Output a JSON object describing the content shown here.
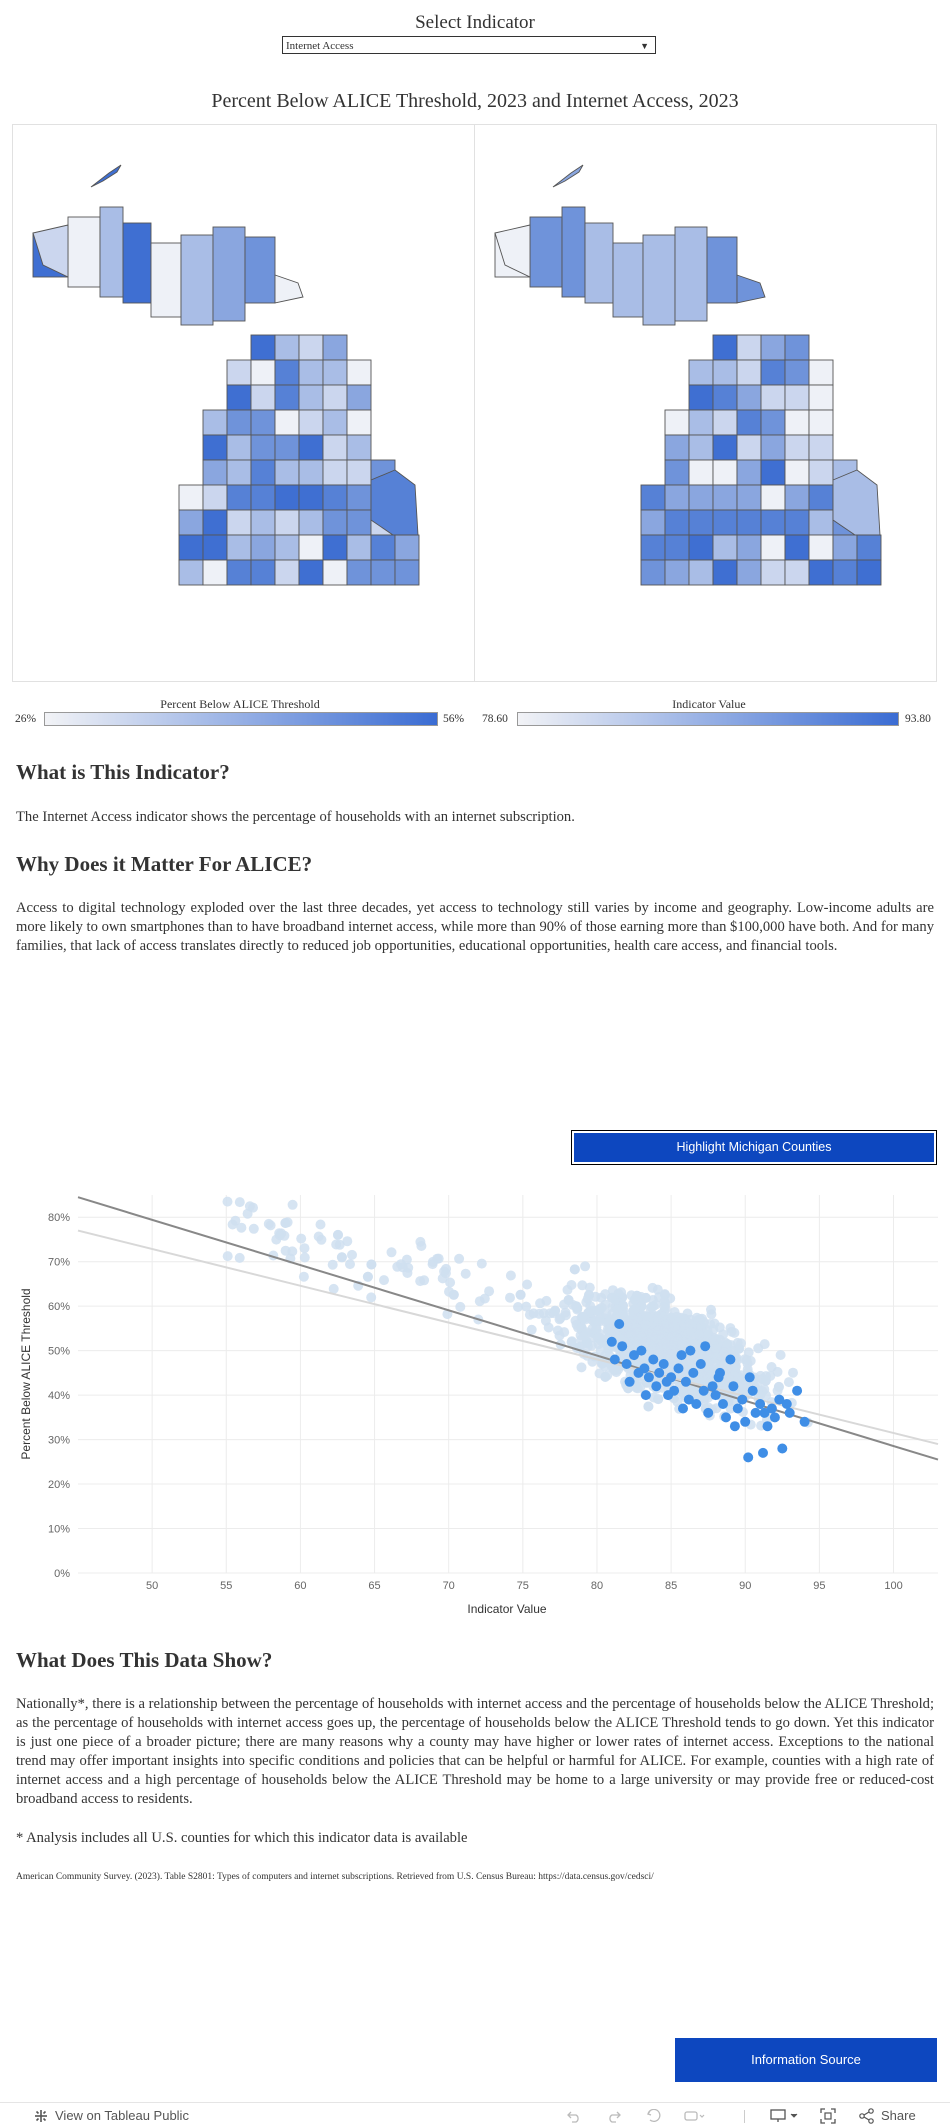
{
  "selector": {
    "label": "Select Indicator",
    "value": "Internet Access"
  },
  "map_title": "Percent Below ALICE Threshold, 2023 and Internet Access, 2023",
  "legend_left": {
    "title": "Percent Below ALICE Threshold",
    "min": "26%",
    "max": "56%"
  },
  "legend_right": {
    "title": "Indicator Value",
    "min": "78.60",
    "max": "93.80"
  },
  "colors": {
    "accent": "#0d47bf",
    "map_dark": "#3b6fd0",
    "map_light": "#eef1f7",
    "dot_light": "#cfdff0",
    "dot_mi": "#3f8ee6"
  },
  "section1": {
    "heading": "What is This Indicator?",
    "body": "The Internet Access indicator shows the percentage of households with an internet subscription."
  },
  "section2": {
    "heading": "Why Does it Matter For ALICE?",
    "body": "Access to digital technology exploded over the last three decades, yet access to technology still varies by income and geography. Low-income adults are more likely to own smartphones than to have broadband internet access, while more than 90% of those earning more than $100,000 have both. And for many families, that lack of access translates directly to reduced job opportunities, educational opportunities, health care access, and financial tools."
  },
  "highlight_button": "Highlight Michigan Counties",
  "chart_data": {
    "type": "scatter",
    "xlabel": "Indicator Value",
    "ylabel": "Percent Below ALICE Threshold",
    "xlim": [
      45,
      103
    ],
    "ylim": [
      0,
      85
    ],
    "xticks": [
      "50",
      "55",
      "60",
      "65",
      "70",
      "75",
      "80",
      "85",
      "90",
      "95",
      "100"
    ],
    "yticks": [
      "0%",
      "10%",
      "20%",
      "30%",
      "40%",
      "50%",
      "60%",
      "70%",
      "80%"
    ],
    "grid": true,
    "trend_lines": [
      {
        "x": [
          45,
          103
        ],
        "y": [
          84.5,
          25.5
        ],
        "color": "#888888"
      },
      {
        "x": [
          45,
          103
        ],
        "y": [
          77,
          29
        ],
        "color": "#d8d8d8"
      }
    ],
    "michigan_points": [
      [
        81.5,
        56
      ],
      [
        81.7,
        51
      ],
      [
        82,
        47
      ],
      [
        82.5,
        49
      ],
      [
        82.8,
        45
      ],
      [
        83,
        50
      ],
      [
        83.2,
        46
      ],
      [
        83.5,
        44
      ],
      [
        83.8,
        48
      ],
      [
        84,
        42
      ],
      [
        84.2,
        45
      ],
      [
        84.5,
        47
      ],
      [
        84.7,
        43
      ],
      [
        85,
        44
      ],
      [
        85.2,
        41
      ],
      [
        85.5,
        46
      ],
      [
        85.7,
        49
      ],
      [
        86,
        43
      ],
      [
        86.2,
        39
      ],
      [
        86.5,
        45
      ],
      [
        86.7,
        38
      ],
      [
        87,
        47
      ],
      [
        87.2,
        41
      ],
      [
        87.5,
        36
      ],
      [
        87.8,
        42
      ],
      [
        88,
        40
      ],
      [
        88.2,
        44
      ],
      [
        88.5,
        38
      ],
      [
        88.7,
        35
      ],
      [
        89,
        48
      ],
      [
        89.2,
        42
      ],
      [
        89.5,
        37
      ],
      [
        89.8,
        39
      ],
      [
        90,
        34
      ],
      [
        90.2,
        26
      ],
      [
        90.5,
        41
      ],
      [
        90.7,
        36
      ],
      [
        91,
        38
      ],
      [
        91.2,
        27
      ],
      [
        91.5,
        33
      ],
      [
        91.8,
        37
      ],
      [
        92,
        35
      ],
      [
        92.3,
        39
      ],
      [
        92.5,
        28
      ],
      [
        92.8,
        38
      ],
      [
        93,
        36
      ],
      [
        93.5,
        41
      ],
      [
        94,
        34
      ],
      [
        81,
        52
      ],
      [
        82.2,
        43
      ],
      [
        83.3,
        40
      ],
      [
        86.3,
        50
      ],
      [
        87.3,
        51
      ],
      [
        88.3,
        45
      ],
      [
        89.3,
        33
      ],
      [
        90.3,
        44
      ],
      [
        91.3,
        36
      ],
      [
        84.8,
        40
      ],
      [
        85.8,
        37
      ],
      [
        81.2,
        48
      ]
    ]
  },
  "section3": {
    "heading": "What Does This Data Show?",
    "body": "Nationally*, there is a relationship between the percentage of households with internet access and the percentage of households below the ALICE Threshold; as the percentage of households with internet access goes up, the percentage of households below the ALICE Threshold tends to go down. Yet this indicator is just one piece of a broader picture; there are many reasons why a county may have higher or lower rates of internet access. Exceptions to the national trend may offer important insights into specific conditions and policies that can be helpful or harmful for ALICE. For example, counties with a high rate of internet access and a high percentage of households below the ALICE Threshold may be home to a large university or may provide free or reduced-cost broadband access to residents.",
    "note": "* Analysis includes all U.S. counties for which this indicator data is available"
  },
  "citation": "American Community Survey. (2023). Table S2801: Types of computers and internet subscriptions. Retrieved from U.S. Census Bureau: https://data.census.gov/cedsci/",
  "info_button": "Information Source",
  "footer": {
    "view_label": "View on Tableau Public",
    "share_label": "Share",
    "icons": [
      "tableau-logo-icon",
      "undo-icon",
      "redo-icon",
      "revert-icon",
      "pause-icon",
      "device-layout-icon",
      "fullscreen-icon",
      "share-icon"
    ]
  }
}
